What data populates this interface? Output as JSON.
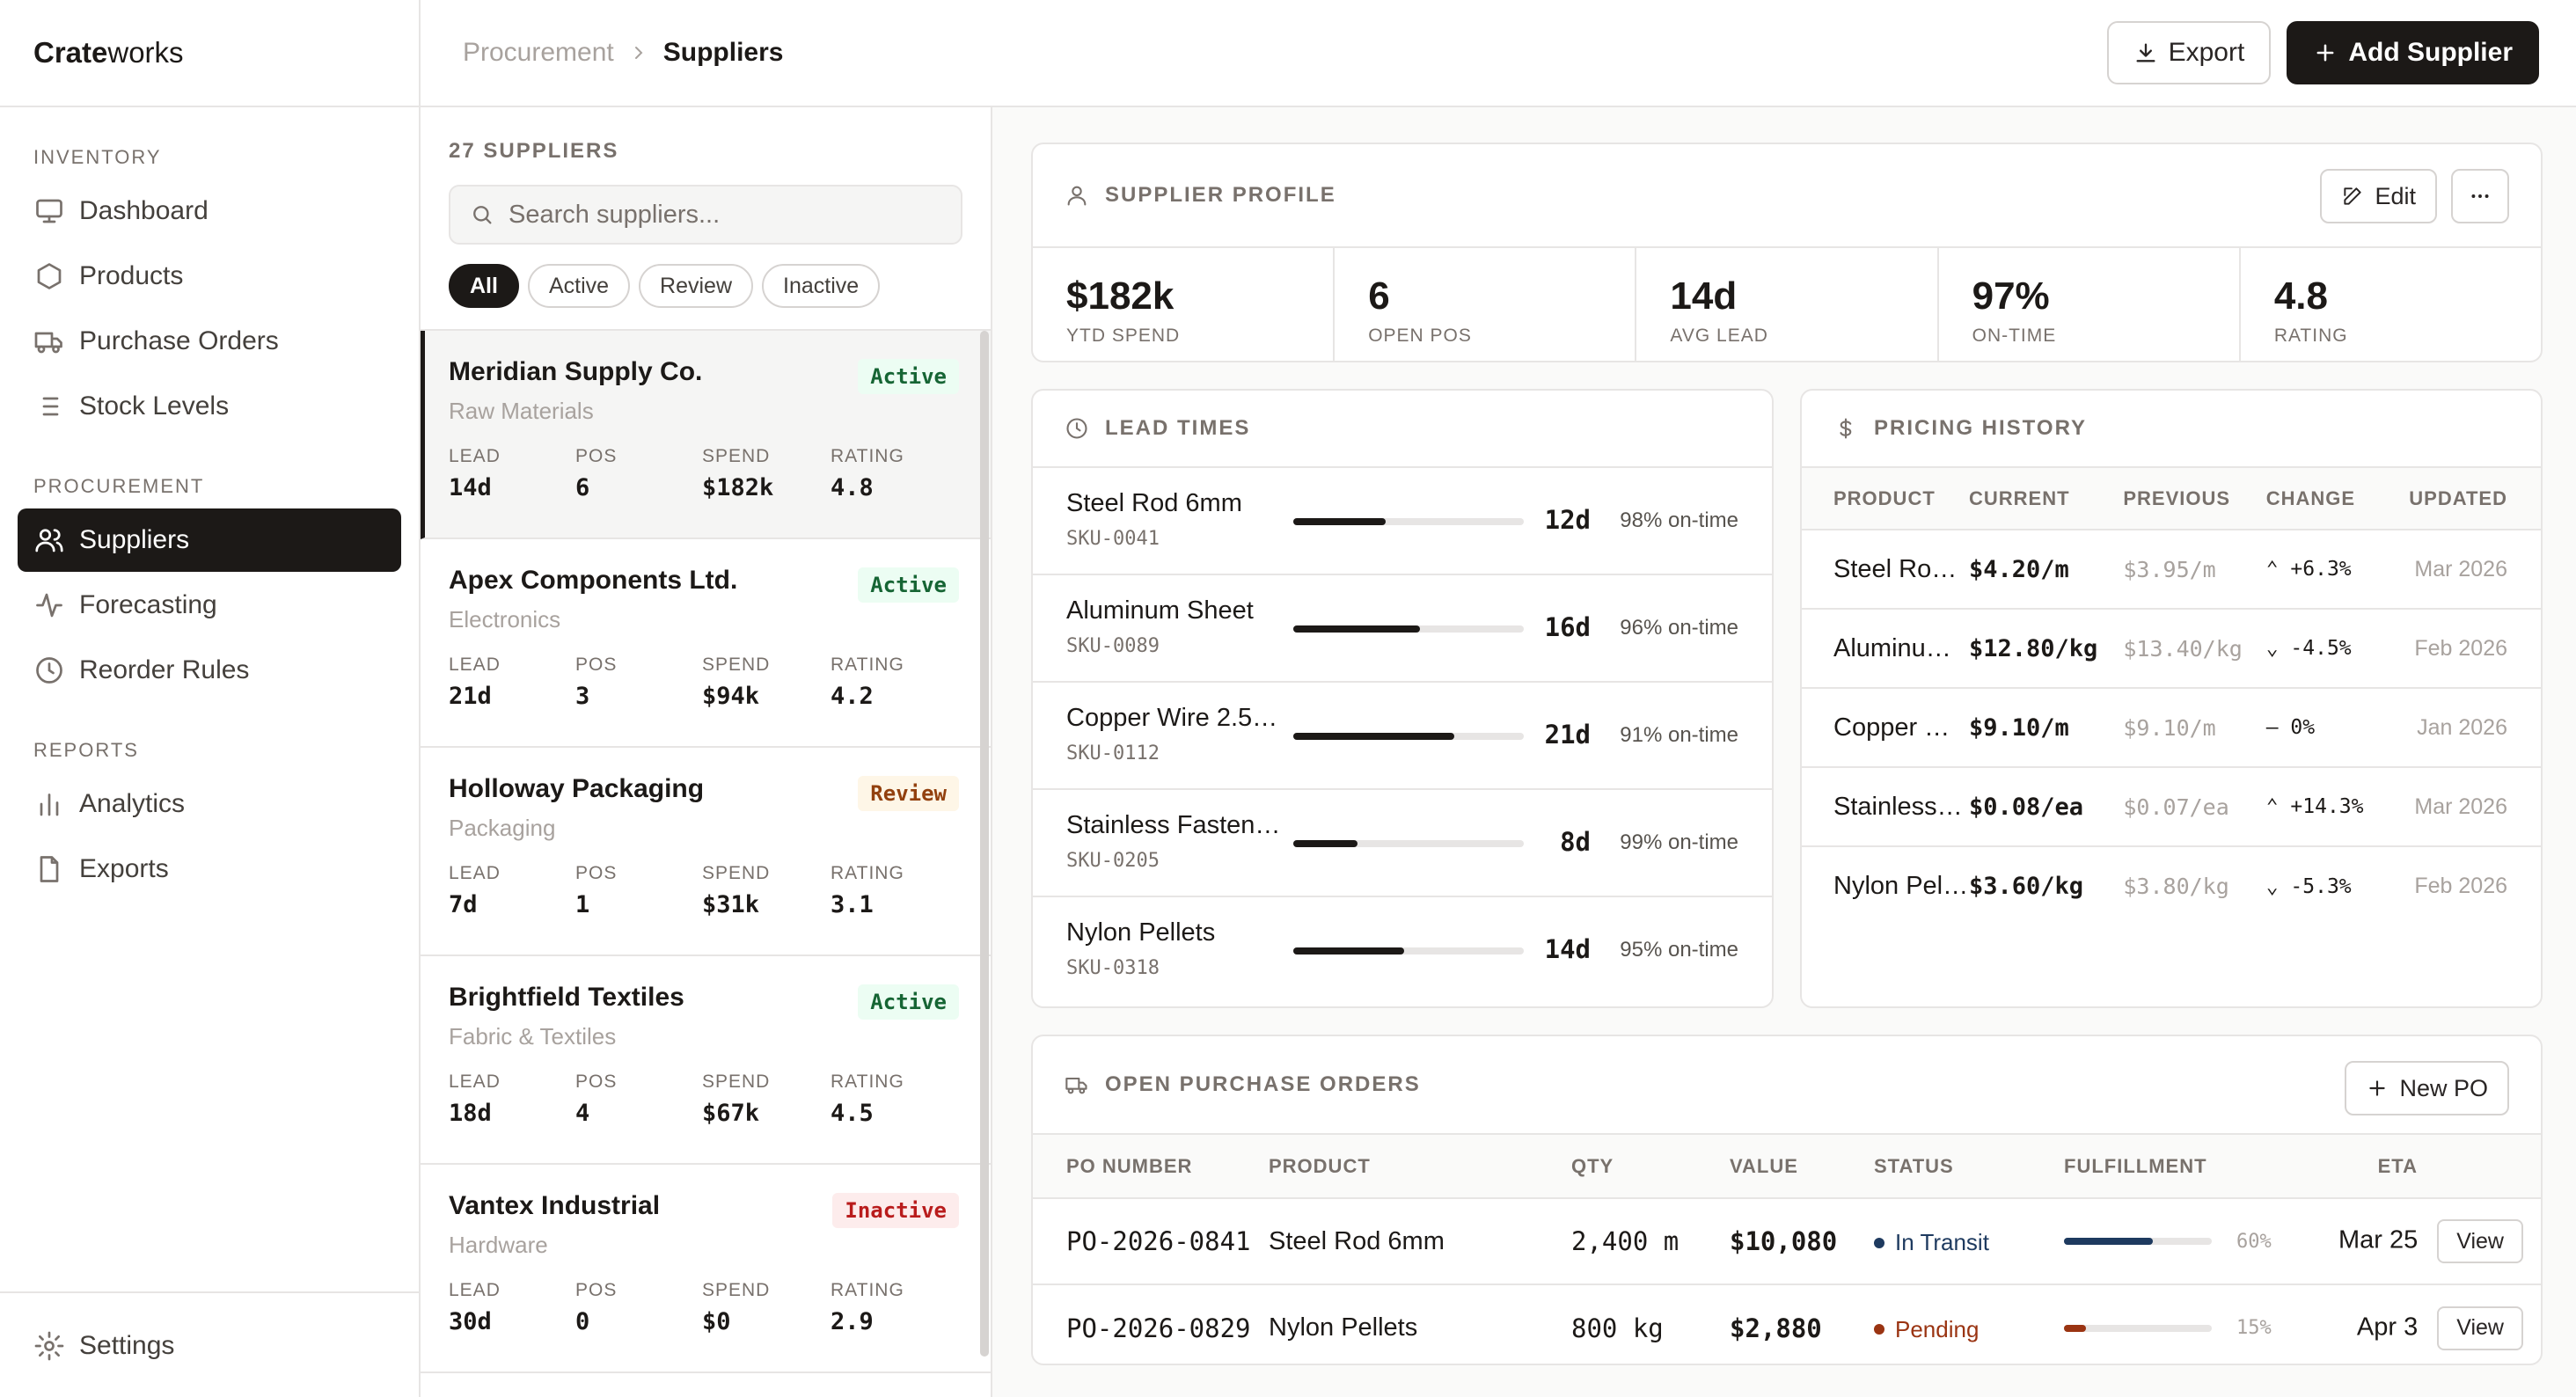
{
  "app": {
    "brand_bold": "Crate",
    "brand_light": "works"
  },
  "sidebar": {
    "sections": [
      {
        "title": "INVENTORY",
        "items": [
          {
            "label": "Dashboard",
            "icon": "monitor-icon"
          },
          {
            "label": "Products",
            "icon": "box-icon"
          },
          {
            "label": "Purchase Orders",
            "icon": "truck-icon"
          },
          {
            "label": "Stock Levels",
            "icon": "list-icon"
          }
        ]
      },
      {
        "title": "PROCUREMENT",
        "items": [
          {
            "label": "Suppliers",
            "icon": "users-icon",
            "active": true
          },
          {
            "label": "Forecasting",
            "icon": "activity-icon"
          },
          {
            "label": "Reorder Rules",
            "icon": "clock-icon"
          }
        ]
      },
      {
        "title": "REPORTS",
        "items": [
          {
            "label": "Analytics",
            "icon": "bar-chart-icon"
          },
          {
            "label": "Exports",
            "icon": "file-icon"
          }
        ]
      }
    ],
    "footer": {
      "label": "Settings",
      "icon": "gear-icon"
    }
  },
  "header": {
    "breadcrumb": [
      "Procurement",
      "Suppliers"
    ],
    "export_label": "Export",
    "add_label": "Add Supplier"
  },
  "supplier_list": {
    "count_label": "27 SUPPLIERS",
    "search_placeholder": "Search suppliers...",
    "filters": [
      "All",
      "Active",
      "Review",
      "Inactive"
    ],
    "active_filter": "All",
    "metric_labels": {
      "lead": "LEAD",
      "pos": "POS",
      "spend": "SPEND",
      "rating": "RATING"
    },
    "items": [
      {
        "name": "Meridian Supply Co.",
        "category": "Raw Materials",
        "status": "Active",
        "lead": "14d",
        "pos": "6",
        "spend": "$182k",
        "rating": "4.8"
      },
      {
        "name": "Apex Components Ltd.",
        "category": "Electronics",
        "status": "Active",
        "lead": "21d",
        "pos": "3",
        "spend": "$94k",
        "rating": "4.2"
      },
      {
        "name": "Holloway Packaging",
        "category": "Packaging",
        "status": "Review",
        "lead": "7d",
        "pos": "1",
        "spend": "$31k",
        "rating": "3.1"
      },
      {
        "name": "Brightfield Textiles",
        "category": "Fabric & Textiles",
        "status": "Active",
        "lead": "18d",
        "pos": "4",
        "spend": "$67k",
        "rating": "4.5"
      },
      {
        "name": "Vantex Industrial",
        "category": "Hardware",
        "status": "Inactive",
        "lead": "30d",
        "pos": "0",
        "spend": "$0",
        "rating": "2.9"
      }
    ]
  },
  "profile": {
    "title": "SUPPLIER PROFILE",
    "edit_label": "Edit",
    "stats": [
      {
        "value": "$182k",
        "label": "YTD SPEND"
      },
      {
        "value": "6",
        "label": "OPEN POS"
      },
      {
        "value": "14d",
        "label": "AVG LEAD"
      },
      {
        "value": "97%",
        "label": "ON-TIME"
      },
      {
        "value": "4.8",
        "label": "RATING"
      }
    ]
  },
  "lead_times": {
    "title": "LEAD TIMES",
    "rows": [
      {
        "name": "Steel Rod 6mm",
        "sku": "SKU-0041",
        "days": "12d",
        "ontime": "98% on-time",
        "fill": 0.4
      },
      {
        "name": "Aluminum Sheet",
        "sku": "SKU-0089",
        "days": "16d",
        "ontime": "96% on-time",
        "fill": 0.55
      },
      {
        "name": "Copper Wire 2.5…",
        "sku": "SKU-0112",
        "days": "21d",
        "ontime": "91% on-time",
        "fill": 0.7
      },
      {
        "name": "Stainless Fasten…",
        "sku": "SKU-0205",
        "days": "8d",
        "ontime": "99% on-time",
        "fill": 0.28
      },
      {
        "name": "Nylon Pellets",
        "sku": "SKU-0318",
        "days": "14d",
        "ontime": "95% on-time",
        "fill": 0.48
      }
    ]
  },
  "pricing": {
    "title": "PRICING HISTORY",
    "headers": [
      "PRODUCT",
      "CURRENT",
      "PREVIOUS",
      "CHANGE",
      "UPDATED"
    ],
    "rows": [
      {
        "product": "Steel Rod …",
        "current": "$4.20/m",
        "previous": "$3.95/m",
        "change": "+6.3%",
        "dir": "up",
        "updated": "Mar 2026"
      },
      {
        "product": "Aluminum…",
        "current": "$12.80/kg",
        "previous": "$13.40/kg",
        "change": "-4.5%",
        "dir": "down",
        "updated": "Feb 2026"
      },
      {
        "product": "Copper …",
        "current": "$9.10/m",
        "previous": "$9.10/m",
        "change": "0%",
        "dir": "flat",
        "updated": "Jan 2026"
      },
      {
        "product": "Stainless …",
        "current": "$0.08/ea",
        "previous": "$0.07/ea",
        "change": "+14.3%",
        "dir": "up",
        "updated": "Mar 2026"
      },
      {
        "product": "Nylon Pell…",
        "current": "$3.60/kg",
        "previous": "$3.80/kg",
        "change": "-5.3%",
        "dir": "down",
        "updated": "Feb 2026"
      }
    ]
  },
  "orders": {
    "title": "OPEN PURCHASE ORDERS",
    "new_label": "New PO",
    "headers": [
      "PO NUMBER",
      "PRODUCT",
      "QTY",
      "VALUE",
      "STATUS",
      "FULFILLMENT",
      "ETA"
    ],
    "view_label": "View",
    "rows": [
      {
        "po": "PO-2026-0841",
        "product": "Steel Rod 6mm",
        "qty": "2,400 m",
        "value": "$10,080",
        "status": "In Transit",
        "status_color": "#1e3a5f",
        "fulfillment": 0.6,
        "pct": "60%",
        "eta": "Mar 25"
      },
      {
        "po": "PO-2026-0829",
        "product": "Nylon Pellets",
        "qty": "800 kg",
        "value": "$2,880",
        "status": "Pending",
        "status_color": "#9a3412",
        "fulfillment": 0.15,
        "pct": "15%",
        "eta": "Apr 3"
      }
    ]
  },
  "colors": {
    "accent": "#1c1917",
    "active_badge": "#166534",
    "review_badge": "#92400e",
    "inactive_badge": "#b91c1c"
  }
}
